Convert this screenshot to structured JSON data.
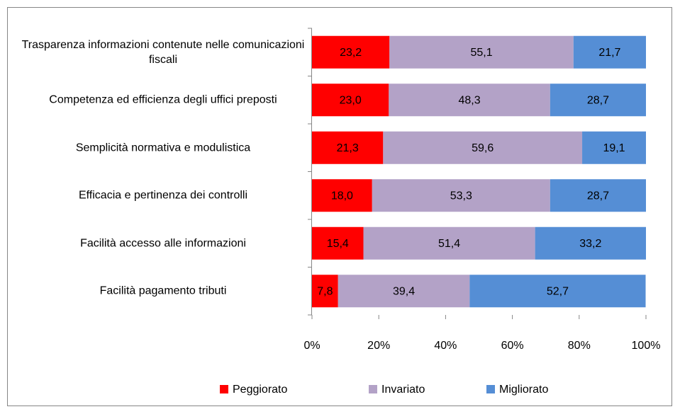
{
  "chart_data": {
    "type": "stacked_bar_horizontal",
    "categories": [
      "Trasparenza informazioni contenute nelle comunicazioni fiscali",
      "Competenza ed efficienza degli uffici preposti",
      "Semplicità normativa e modulistica",
      "Efficacia e pertinenza dei controlli",
      "Facilità accesso alle informazioni",
      "Facilità pagamento tributi"
    ],
    "series": [
      {
        "name": "Peggiorato",
        "color": "#ff0000",
        "values": [
          23.2,
          23.0,
          21.3,
          18.0,
          15.4,
          7.8
        ],
        "value_labels": [
          "23,2",
          "23,0",
          "21,3",
          "18,0",
          "15,4",
          "7,8"
        ]
      },
      {
        "name": "Invariato",
        "color": "#b3a2c7",
        "values": [
          55.1,
          48.3,
          59.6,
          53.3,
          51.4,
          39.4
        ],
        "value_labels": [
          "55,1",
          "48,3",
          "59,6",
          "53,3",
          "51,4",
          "39,4"
        ]
      },
      {
        "name": "Migliorato",
        "color": "#558ed5",
        "values": [
          21.7,
          28.7,
          19.1,
          28.7,
          33.2,
          52.7
        ],
        "value_labels": [
          "21,7",
          "28,7",
          "19,1",
          "28,7",
          "33,2",
          "52,7"
        ]
      }
    ],
    "xlim": [
      0,
      100
    ],
    "xticks": [
      {
        "value": 0,
        "label": "0%"
      },
      {
        "value": 20,
        "label": "20%"
      },
      {
        "value": 40,
        "label": "40%"
      },
      {
        "value": 60,
        "label": "60%"
      },
      {
        "value": 80,
        "label": "80%"
      },
      {
        "value": 100,
        "label": "100%"
      }
    ],
    "legend": "bottom"
  }
}
